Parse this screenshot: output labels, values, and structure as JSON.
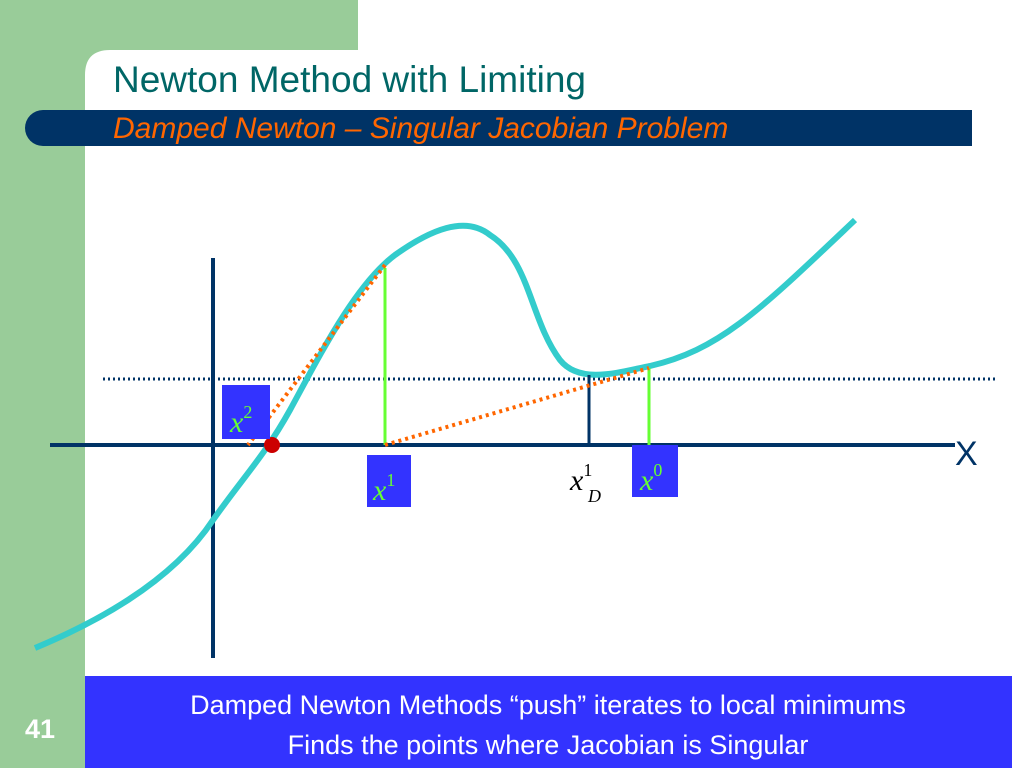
{
  "header": {
    "title": "Newton Method with Limiting",
    "subtitle": "Damped Newton – Singular Jacobian Problem"
  },
  "axis_label": "X",
  "labels": [
    {
      "base": "x",
      "sup": "2"
    },
    {
      "base": "x",
      "sup": "1"
    },
    {
      "base": "x",
      "sup": "1",
      "sub": "D"
    },
    {
      "base": "x",
      "sup": "0"
    }
  ],
  "note": {
    "lines": [
      "Damped Newton Methods “push” iterates to local minimums",
      "Finds the points where Jacobian is Singular"
    ]
  },
  "slide_number": "41"
}
